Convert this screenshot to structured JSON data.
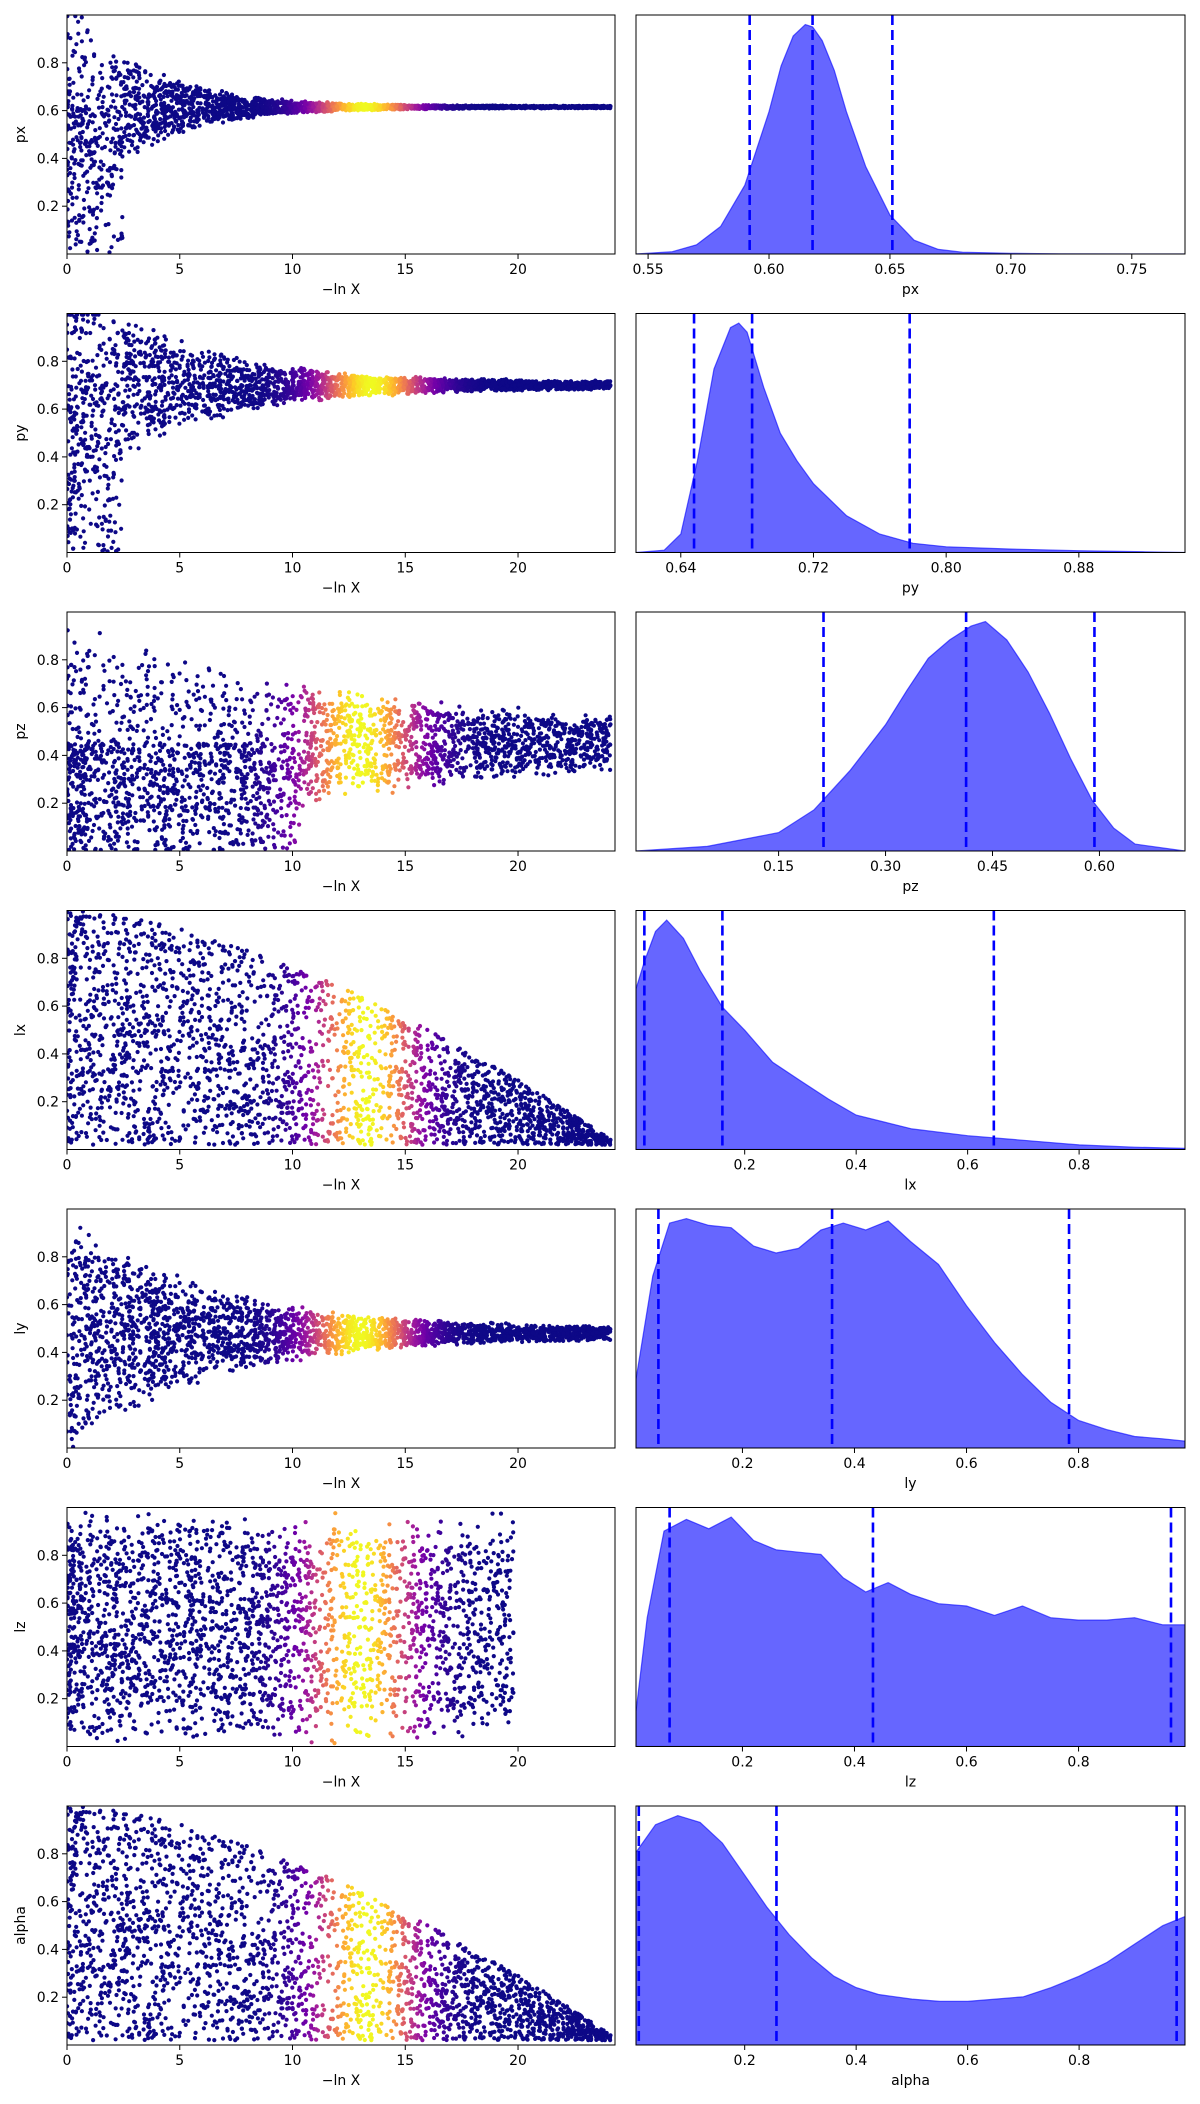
{
  "chart_data": {
    "type": "trace_plot",
    "xlabel_scatter": "−ln X",
    "scatter_xticks": [
      "0",
      "5",
      "10",
      "15",
      "20"
    ],
    "scatter_xlim": [
      0,
      24.3
    ],
    "scatter_colormap": "plasma",
    "posterior_color": "#0000ff",
    "quantile_line_color": "#0000ff",
    "rows": [
      {
        "parameter": "px",
        "scatter": {
          "ylim": [
            0,
            1
          ],
          "yticks": [
            "0.2",
            "0.4",
            "0.6",
            "0.8"
          ],
          "center_y": 0.615,
          "converge_x": 24.3,
          "peak_x": 13.2,
          "peak_width": 2.2,
          "spread_start": 0.5,
          "spread_end": 0.005,
          "decay_rate": 0.3,
          "lower_cutoff_x": 2.5,
          "lower_cutoff_y": 0.4
        },
        "posterior": {
          "xlabel": "px",
          "xlim": [
            0.545,
            0.772
          ],
          "xticks": [
            "0.55",
            "0.60",
            "0.65",
            "0.70",
            "0.75"
          ],
          "x": [
            0.545,
            0.56,
            0.57,
            0.58,
            0.59,
            0.6,
            0.605,
            0.61,
            0.615,
            0.618,
            0.622,
            0.627,
            0.632,
            0.64,
            0.65,
            0.66,
            0.67,
            0.68,
            0.7,
            0.72,
            0.75,
            0.772
          ],
          "density": [
            0.0,
            0.01,
            0.04,
            0.12,
            0.3,
            0.62,
            0.82,
            0.95,
            1.0,
            0.99,
            0.93,
            0.8,
            0.62,
            0.38,
            0.17,
            0.06,
            0.02,
            0.008,
            0.003,
            0.001,
            0.0,
            0.0
          ],
          "quantiles": [
            0.592,
            0.618,
            0.651
          ]
        }
      },
      {
        "parameter": "py",
        "scatter": {
          "ylim": [
            0,
            1
          ],
          "yticks": [
            "0.2",
            "0.4",
            "0.6",
            "0.8"
          ],
          "center_y": 0.7,
          "converge_x": 24.3,
          "peak_x": 13.5,
          "peak_width": 2.3,
          "spread_start": 0.5,
          "spread_end": 0.015,
          "decay_rate": 0.2,
          "lower_cutoff_x": 2.5,
          "lower_cutoff_y": 0.4
        },
        "posterior": {
          "xlabel": "py",
          "xlim": [
            0.613,
            0.944
          ],
          "xticks": [
            "0.64",
            "0.72",
            "0.80",
            "0.88"
          ],
          "x": [
            0.613,
            0.63,
            0.64,
            0.65,
            0.66,
            0.67,
            0.675,
            0.68,
            0.69,
            0.7,
            0.71,
            0.72,
            0.74,
            0.76,
            0.78,
            0.8,
            0.84,
            0.88,
            0.92,
            0.944
          ],
          "density": [
            0.0,
            0.01,
            0.08,
            0.4,
            0.8,
            0.98,
            1.0,
            0.96,
            0.72,
            0.52,
            0.4,
            0.3,
            0.16,
            0.08,
            0.04,
            0.025,
            0.015,
            0.008,
            0.003,
            0.0
          ],
          "quantiles": [
            0.648,
            0.683,
            0.778
          ]
        }
      },
      {
        "parameter": "pz",
        "scatter": {
          "ylim": [
            0,
            1
          ],
          "yticks": [
            "0.2",
            "0.4",
            "0.6",
            "0.8"
          ],
          "center_y": 0.45,
          "converge_x": 24.3,
          "peak_x": 13.0,
          "peak_width": 2.5,
          "spread_start": 0.5,
          "spread_end": 0.05,
          "decay_rate": 0.08,
          "lower_cutoff_x": 10.5,
          "lower_cutoff_y": 0.0
        },
        "posterior": {
          "xlabel": "pz",
          "xlim": [
            -0.05,
            0.72
          ],
          "xticks": [
            "0.15",
            "0.30",
            "0.45",
            "0.60"
          ],
          "x": [
            -0.05,
            0.05,
            0.15,
            0.2,
            0.25,
            0.3,
            0.33,
            0.36,
            0.39,
            0.42,
            0.44,
            0.47,
            0.5,
            0.53,
            0.56,
            0.59,
            0.62,
            0.65,
            0.72
          ],
          "density": [
            0.0,
            0.02,
            0.08,
            0.18,
            0.35,
            0.55,
            0.7,
            0.84,
            0.92,
            0.98,
            1.0,
            0.92,
            0.78,
            0.6,
            0.4,
            0.22,
            0.1,
            0.03,
            0.0
          ],
          "quantiles": [
            0.213,
            0.413,
            0.593
          ]
        }
      },
      {
        "parameter": "lx",
        "scatter": {
          "ylim": [
            0,
            1
          ],
          "yticks": [
            "0.2",
            "0.4",
            "0.6",
            "0.8"
          ],
          "center_y": 0.05,
          "converge_x": 24.3,
          "peak_x": 13.3,
          "peak_width": 2.2,
          "spread_start": 0.95,
          "spread_end": 0.0,
          "decay_rate": 0.0,
          "triangle": true,
          "lower_cutoff_x": 0,
          "lower_cutoff_y": 0
        },
        "posterior": {
          "xlabel": "lx",
          "xlim": [
            0.005,
            0.99
          ],
          "xticks": [
            "0.2",
            "0.4",
            "0.6",
            "0.8"
          ],
          "x": [
            0.005,
            0.02,
            0.04,
            0.06,
            0.09,
            0.12,
            0.16,
            0.2,
            0.25,
            0.3,
            0.35,
            0.4,
            0.45,
            0.5,
            0.6,
            0.7,
            0.8,
            0.9,
            0.99
          ],
          "density": [
            0.7,
            0.82,
            0.95,
            1.0,
            0.92,
            0.78,
            0.62,
            0.52,
            0.38,
            0.3,
            0.22,
            0.15,
            0.12,
            0.09,
            0.06,
            0.04,
            0.02,
            0.01,
            0.005
          ],
          "quantiles": [
            0.02,
            0.16,
            0.647
          ]
        }
      },
      {
        "parameter": "ly",
        "scatter": {
          "ylim": [
            0,
            1
          ],
          "yticks": [
            "0.2",
            "0.4",
            "0.6",
            "0.8"
          ],
          "center_y": 0.48,
          "converge_x": 24.3,
          "peak_x": 13.0,
          "peak_width": 2.3,
          "spread_start": 0.5,
          "spread_end": 0.02,
          "decay_rate": 0.16,
          "lower_cutoff_x": 0,
          "lower_cutoff_y": 0
        },
        "posterior": {
          "xlabel": "ly",
          "xlim": [
            0.01,
            0.99
          ],
          "xticks": [
            "0.2",
            "0.4",
            "0.6",
            "0.8"
          ],
          "x": [
            0.01,
            0.04,
            0.07,
            0.1,
            0.14,
            0.18,
            0.22,
            0.26,
            0.3,
            0.34,
            0.38,
            0.42,
            0.46,
            0.5,
            0.55,
            0.6,
            0.65,
            0.7,
            0.75,
            0.8,
            0.85,
            0.9,
            0.95,
            0.99
          ],
          "density": [
            0.3,
            0.75,
            0.98,
            1.0,
            0.97,
            0.96,
            0.88,
            0.85,
            0.87,
            0.95,
            0.98,
            0.95,
            0.99,
            0.9,
            0.8,
            0.62,
            0.46,
            0.32,
            0.2,
            0.12,
            0.08,
            0.05,
            0.04,
            0.03
          ],
          "quantiles": [
            0.05,
            0.36,
            0.783
          ]
        }
      },
      {
        "parameter": "lz",
        "scatter": {
          "ylim": [
            0,
            1
          ],
          "yticks": [
            "0.2",
            "0.4",
            "0.6",
            "0.8"
          ],
          "center_y": 0.5,
          "converge_x": 20.0,
          "peak_x": 13.0,
          "peak_width": 2.3,
          "spread_start": 0.5,
          "spread_end": 0.48,
          "decay_rate": 0.0,
          "lower_cutoff_x": 0,
          "lower_cutoff_y": 0
        },
        "posterior": {
          "xlabel": "lz",
          "xlim": [
            0.01,
            0.99
          ],
          "xticks": [
            "0.2",
            "0.4",
            "0.6",
            "0.8"
          ],
          "x": [
            0.01,
            0.03,
            0.06,
            0.1,
            0.14,
            0.18,
            0.22,
            0.26,
            0.3,
            0.34,
            0.38,
            0.42,
            0.46,
            0.5,
            0.55,
            0.6,
            0.65,
            0.7,
            0.75,
            0.8,
            0.85,
            0.9,
            0.95,
            0.99
          ],
          "density": [
            0.15,
            0.55,
            0.92,
            0.97,
            0.93,
            0.98,
            0.88,
            0.84,
            0.83,
            0.82,
            0.72,
            0.66,
            0.7,
            0.65,
            0.61,
            0.6,
            0.56,
            0.6,
            0.55,
            0.54,
            0.54,
            0.55,
            0.52,
            0.52
          ],
          "quantiles": [
            0.07,
            0.433,
            0.965
          ]
        }
      },
      {
        "parameter": "alpha",
        "scatter": {
          "ylim": [
            0,
            1
          ],
          "yticks": [
            "0.2",
            "0.4",
            "0.6",
            "0.8"
          ],
          "center_y": 0.05,
          "converge_x": 24.3,
          "peak_x": 13.3,
          "peak_width": 2.2,
          "spread_start": 0.95,
          "spread_end": 0.0,
          "decay_rate": 0.0,
          "triangle": true,
          "lower_cutoff_x": 0,
          "lower_cutoff_y": 0
        },
        "posterior": {
          "xlabel": "alpha",
          "xlim": [
            0.005,
            0.99
          ],
          "xticks": [
            "0.2",
            "0.4",
            "0.6",
            "0.8"
          ],
          "x": [
            0.005,
            0.04,
            0.08,
            0.12,
            0.16,
            0.2,
            0.24,
            0.28,
            0.32,
            0.36,
            0.4,
            0.44,
            0.5,
            0.55,
            0.6,
            0.65,
            0.7,
            0.75,
            0.8,
            0.85,
            0.9,
            0.95,
            0.99
          ],
          "density": [
            0.84,
            0.96,
            1.0,
            0.97,
            0.88,
            0.74,
            0.6,
            0.48,
            0.38,
            0.3,
            0.25,
            0.22,
            0.2,
            0.19,
            0.19,
            0.2,
            0.21,
            0.25,
            0.3,
            0.36,
            0.44,
            0.52,
            0.56
          ],
          "quantiles": [
            0.01,
            0.257,
            0.975
          ]
        }
      }
    ]
  }
}
